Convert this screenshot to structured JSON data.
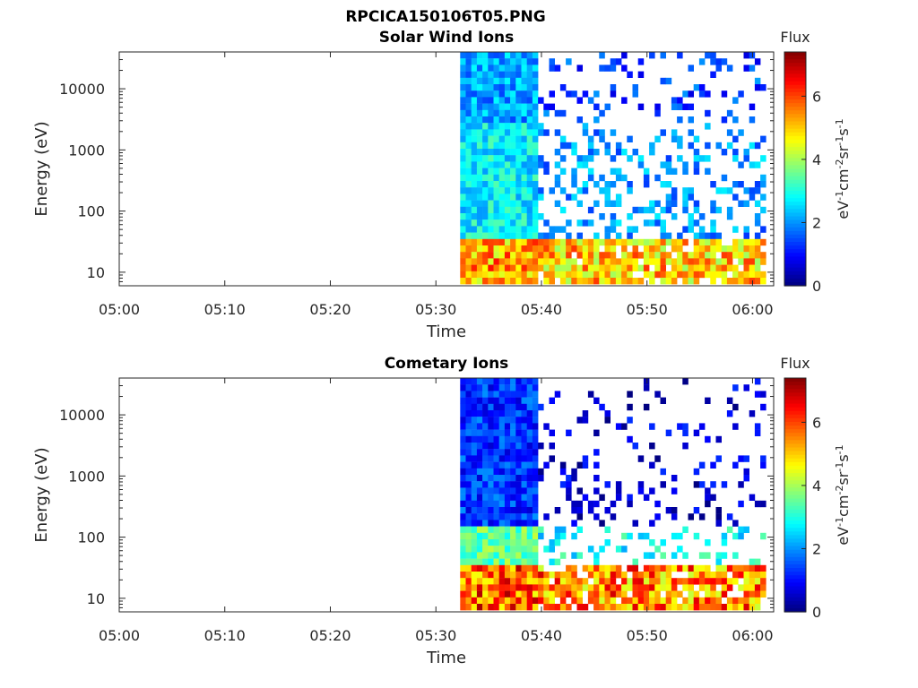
{
  "figure_title": "RPCICA150106T05.PNG",
  "chart_data": [
    {
      "type": "heatmap",
      "title": "Solar Wind Ions",
      "xlabel": "Time",
      "ylabel": "Energy (eV)",
      "x_ticks": [
        "05:00",
        "05:10",
        "05:20",
        "05:30",
        "05:40",
        "05:50",
        "06:00"
      ],
      "xlim_minutes_after_0500": [
        0,
        62
      ],
      "y_ticks": [
        "10",
        "100",
        "1000",
        "10000"
      ],
      "y_scale": "log",
      "ylim": [
        6,
        40000
      ],
      "data_start_minutes_after_0500": 32.3,
      "colorbar": {
        "label": "Flux",
        "units": "eV",
        "units_exponents": [
          "-1",
          "-2",
          "-1",
          "-1"
        ],
        "units_parts": [
          "cm",
          "sr",
          "s"
        ],
        "range": [
          0,
          7.4
        ],
        "ticks": [
          "0",
          "2",
          "4",
          "6"
        ],
        "colormap": "jet"
      }
    },
    {
      "type": "heatmap",
      "title": "Cometary Ions",
      "xlabel": "Time",
      "ylabel": "Energy (eV)",
      "x_ticks": [
        "05:00",
        "05:10",
        "05:20",
        "05:30",
        "05:40",
        "05:50",
        "06:00"
      ],
      "xlim_minutes_after_0500": [
        0,
        62
      ],
      "y_ticks": [
        "10",
        "100",
        "1000",
        "10000"
      ],
      "y_scale": "log",
      "ylim": [
        6,
        40000
      ],
      "data_start_minutes_after_0500": 32.3,
      "colorbar": {
        "label": "Flux",
        "units": "eV",
        "units_exponents": [
          "-1",
          "-2",
          "-1",
          "-1"
        ],
        "units_parts": [
          "cm",
          "sr",
          "s"
        ],
        "range": [
          0,
          7.4
        ],
        "ticks": [
          "0",
          "2",
          "4",
          "6"
        ],
        "colormap": "jet"
      }
    }
  ]
}
